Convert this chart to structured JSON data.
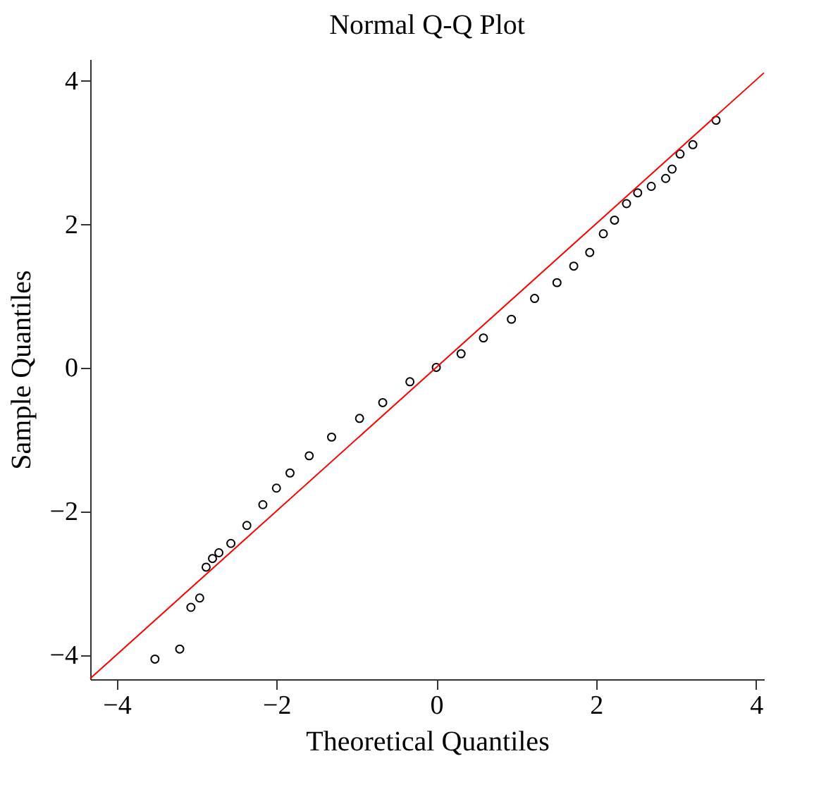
{
  "chart_data": {
    "type": "scatter",
    "title": "Normal Q-Q Plot",
    "xlabel": "Theoretical Quantiles",
    "ylabel": "Sample Quantiles",
    "xlim": [
      -4.33,
      4.1
    ],
    "ylim": [
      -4.34,
      4.29
    ],
    "xticks": [
      {
        "value": -4,
        "label": "−4"
      },
      {
        "value": -2,
        "label": "−2"
      },
      0,
      2,
      4
    ],
    "yticks": [
      {
        "value": -4,
        "label": "−4"
      },
      {
        "value": -2,
        "label": "−2"
      },
      0,
      2,
      4
    ],
    "grid": false,
    "marker": "circle",
    "series": [
      {
        "color": "#000000",
        "x": [
          -3.52,
          -3.21,
          -3.07,
          -2.96,
          -2.88,
          -2.8,
          -2.72,
          -2.57,
          -2.37,
          -2.17,
          -2.0,
          -1.83,
          -1.59,
          -1.31,
          -0.96,
          -0.67,
          -0.33,
          0,
          0.31,
          0.59,
          0.94,
          1.23,
          1.51,
          1.72,
          1.92,
          2.09,
          2.23,
          2.38,
          2.52,
          2.69,
          2.87,
          2.95,
          3.05,
          3.21,
          3.5
        ],
        "values": [
          -4.06,
          -3.92,
          -3.34,
          -3.21,
          -2.78,
          -2.66,
          -2.58,
          -2.45,
          -2.2,
          -1.91,
          -1.68,
          -1.47,
          -1.23,
          -0.97,
          -0.71,
          -0.49,
          -0.2,
          0,
          0.19,
          0.41,
          0.67,
          0.96,
          1.18,
          1.41,
          1.6,
          1.86,
          2.05,
          2.28,
          2.43,
          2.52,
          2.63,
          2.76,
          2.97,
          3.1,
          3.44
        ]
      },
      {
        "type": "line",
        "marker": "none",
        "color": "#ff0000",
        "x": [
          -4.33,
          4.1
        ],
        "values": [
          -4.33,
          4.1
        ]
      }
    ]
  }
}
